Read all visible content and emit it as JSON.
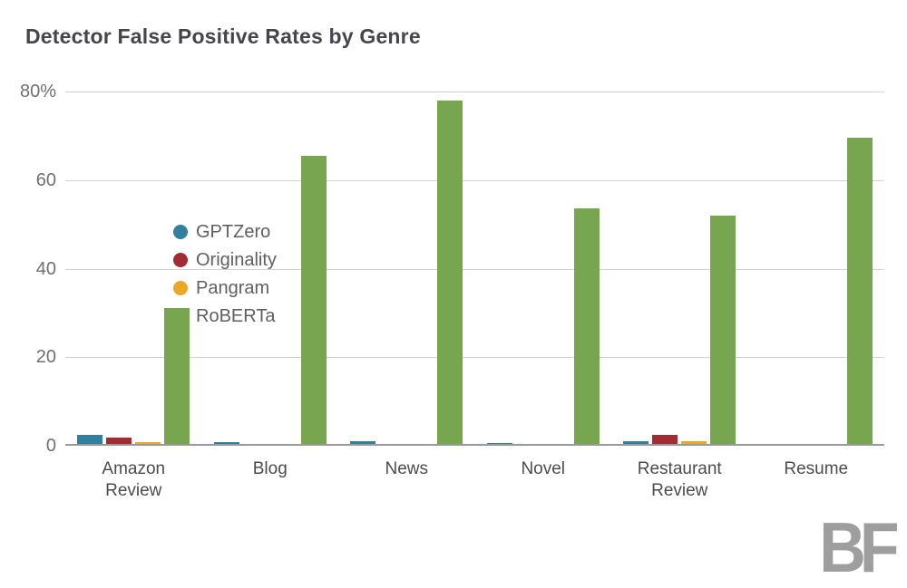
{
  "page": {
    "title": "Detector False Positive Rates by Genre",
    "logo_text": "BF"
  },
  "chart_data": {
    "type": "bar",
    "title": "Detector False Positive Rates by Genre",
    "xlabel": "",
    "ylabel": "",
    "unit": "%",
    "categories": [
      "Amazon Review",
      "Blog",
      "News",
      "Novel",
      "Restaurant Review",
      "Resume"
    ],
    "series": [
      {
        "name": "GPTZero",
        "color": "#30809e",
        "values": [
          2.3,
          0.6,
          0.9,
          0.4,
          0.9,
          0
        ]
      },
      {
        "name": "Originality",
        "color": "#a32b33",
        "values": [
          1.7,
          0,
          0,
          0,
          2.3,
          0
        ]
      },
      {
        "name": "Pangram",
        "color": "#eaa827",
        "values": [
          0.6,
          0,
          0,
          0,
          0.8,
          0
        ]
      },
      {
        "name": "RoBERTa",
        "color": "#78a650",
        "values": [
          31.0,
          65.2,
          77.8,
          53.4,
          51.7,
          69.3
        ]
      }
    ],
    "ylim": [
      0,
      80
    ],
    "y_ticks": [
      {
        "value": 0,
        "label": "0"
      },
      {
        "value": 20,
        "label": "20"
      },
      {
        "value": 40,
        "label": "40"
      },
      {
        "value": 60,
        "label": "60"
      },
      {
        "value": 80,
        "label": "80%"
      }
    ],
    "grid": "horizontal",
    "legend_position": "inside-top-left"
  }
}
